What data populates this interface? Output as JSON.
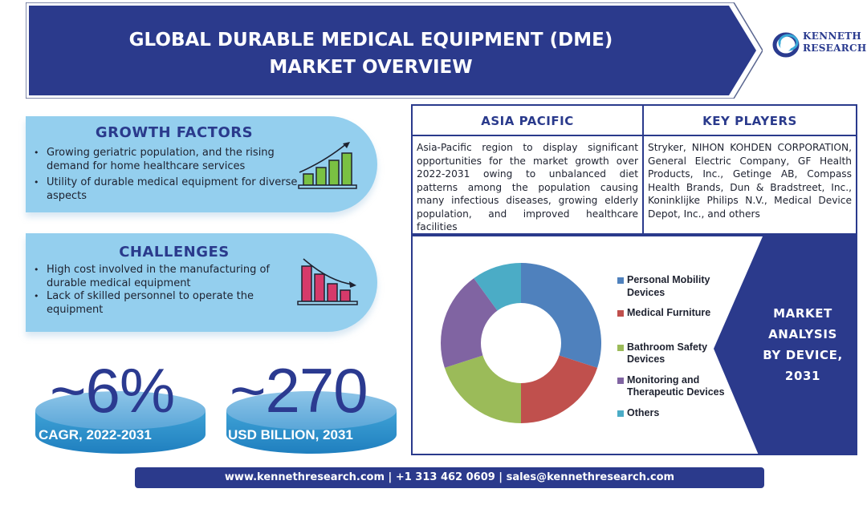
{
  "header": {
    "title_line1": "GLOBAL DURABLE MEDICAL EQUIPMENT (DME)",
    "title_line2": "MARKET OVERVIEW",
    "banner_color": "#2b3a8c"
  },
  "logo": {
    "line1": "KENNETH",
    "line2": "RESEARCH",
    "icon": "swirl-logo-icon"
  },
  "growth_factors": {
    "title": "GROWTH FACTORS",
    "icon": "bar-chart-up-icon",
    "items": [
      "Growing geriatric population, and the rising demand for home healthcare services",
      "Utility of durable medical equipment for diverse aspects"
    ]
  },
  "challenges": {
    "title": "CHALLENGES",
    "icon": "bar-chart-down-icon",
    "items": [
      "High cost involved in the manufacturing of durable medical equipment",
      "Lack of skilled personnel to operate the equipment"
    ]
  },
  "stats": [
    {
      "value": "~6%",
      "label": "CAGR, 2022-2031"
    },
    {
      "value": "~270",
      "label": "USD BILLION, 2031"
    }
  ],
  "asia_pacific": {
    "title": "ASIA PACIFIC",
    "text": "Asia-Pacific region to display significant opportunities for the market growth over 2022-2031 owing to unbalanced diet patterns among the population causing many infectious diseases, growing elderly population, and improved healthcare facilities"
  },
  "key_players": {
    "title": "KEY PLAYERS",
    "text": "Stryker, NIHON KOHDEN CORPORATION, General Electric Company, GF Health Products, Inc., Getinge AB, Compass Health Brands, Dun & Bradstreet, Inc., Koninklijke Philips N.V., Medical Device Depot, Inc., and others"
  },
  "market_analysis": {
    "line1": "MARKET",
    "line2": "ANALYSIS",
    "line3": "BY DEVICE,",
    "line4": "2031"
  },
  "chart_data": {
    "type": "pie",
    "subtype": "donut",
    "title": "MARKET ANALYSIS BY DEVICE, 2031",
    "categories": [
      "Personal Mobility Devices",
      "Medical Furniture",
      "Bathroom Safety Devices",
      "Monitoring and Therapeutic Devices",
      "Others"
    ],
    "values": [
      30,
      20,
      20,
      20,
      10
    ],
    "colors": [
      "#4f81bd",
      "#c0504d",
      "#9bbb59",
      "#8064a2",
      "#4bacc6"
    ],
    "legend_position": "right",
    "legend_lines": [
      [
        "Personal Mobility",
        "Devices"
      ],
      [
        "Medical Furniture"
      ],
      [
        "Bathroom Safety",
        "Devices"
      ],
      [
        "Monitoring and",
        "Therapeutic Devices"
      ],
      [
        "Others"
      ]
    ]
  },
  "footer": {
    "text": "www.kennethresearch.com | +1 313 462 0609 | sales@kennethresearch.com"
  }
}
